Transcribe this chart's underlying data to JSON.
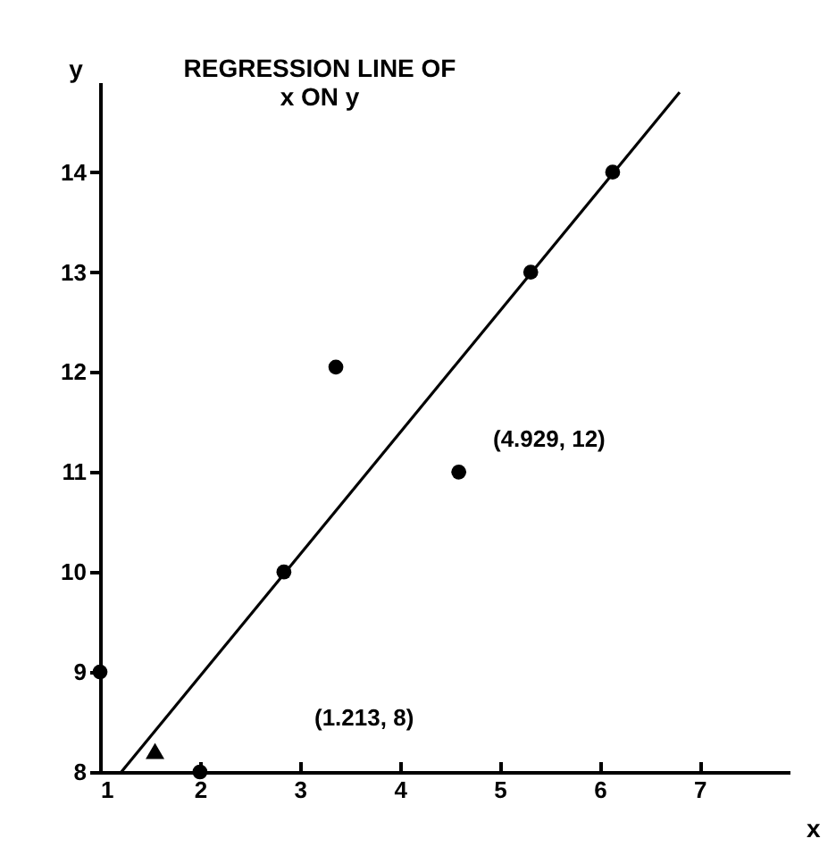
{
  "chart_data": {
    "type": "scatter",
    "title": [
      "REGRESSION LINE OF",
      "x ON y"
    ],
    "xlabel": "x",
    "ylabel": "y",
    "xlim": [
      1,
      7.9
    ],
    "ylim": [
      8,
      14.9
    ],
    "xticks": [
      1,
      2,
      3,
      4,
      5,
      6,
      7
    ],
    "yticks": [
      8,
      9,
      10,
      11,
      12,
      13,
      14
    ],
    "grid": false,
    "series": [
      {
        "color": "#000000",
        "marker": "circle",
        "x": [
          1,
          2,
          2.84,
          3.36,
          4.59,
          5.31,
          6.13
        ],
        "values": [
          9,
          8,
          10,
          12.05,
          11,
          13,
          14
        ]
      },
      {
        "type": "line",
        "color": "#000000",
        "marker": "none",
        "x": [
          1.213,
          6.8
        ],
        "values": [
          8,
          14.8
        ]
      },
      {
        "color": "#000000",
        "marker": "triangle",
        "x": [
          1.55
        ],
        "values": [
          8.21
        ]
      }
    ],
    "annotations": [
      "(4.929, 12)",
      "(1.213, 8)"
    ]
  }
}
